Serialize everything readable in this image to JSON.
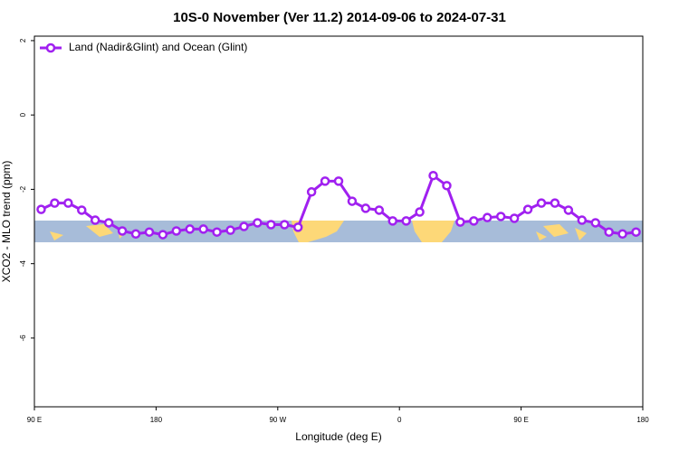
{
  "chart_data": {
    "type": "line",
    "title": "10S-0 November (Ver 11.2)   2014-09-06 to 2024-07-31",
    "xlabel": "Longitude (deg E)",
    "ylabel": "XCO2 - MLO trend (ppm)",
    "x": [
      95,
      105,
      115,
      125,
      135,
      145,
      155,
      165,
      175,
      185,
      195,
      205,
      215,
      225,
      235,
      245,
      255,
      265,
      275,
      285,
      295,
      305,
      315,
      325,
      335,
      345,
      355,
      365,
      375,
      385,
      395,
      405,
      415,
      425,
      435,
      445,
      455,
      465,
      475,
      485,
      495,
      505,
      515,
      525,
      535
    ],
    "series": [
      {
        "name": "Land (Nadir&Glint) and Ocean (Glint)",
        "color": "#a020f0",
        "values": [
          -2.54,
          -2.37,
          -2.37,
          -2.56,
          -2.83,
          -2.9,
          -3.12,
          -3.2,
          -3.15,
          -3.22,
          -3.12,
          -3.07,
          -3.07,
          -3.15,
          -3.1,
          -3.0,
          -2.9,
          -2.95,
          -2.95,
          -3.02,
          -2.07,
          -1.78,
          -1.78,
          -2.32,
          -2.51,
          -2.56,
          -2.85,
          -2.85,
          -2.61,
          -1.63,
          -1.9,
          -2.88,
          -2.85,
          -2.76,
          -2.73,
          -2.78,
          -2.54,
          -2.37,
          -2.37,
          -2.56,
          -2.83,
          -2.9,
          -3.15,
          -3.2,
          -3.15
        ]
      }
    ],
    "xlim": [
      90,
      540
    ],
    "xticks": [
      {
        "value": 90,
        "label": "90 E"
      },
      {
        "value": 180,
        "label": "180"
      },
      {
        "value": 270,
        "label": "90 W"
      },
      {
        "value": 360,
        "label": "0"
      },
      {
        "value": 450,
        "label": "90 E"
      },
      {
        "value": 540,
        "label": "180"
      }
    ],
    "ylim": [
      -7.85,
      2.12
    ],
    "yticks": [
      2,
      0,
      -2,
      -4,
      -6
    ],
    "legend": "upper left"
  }
}
